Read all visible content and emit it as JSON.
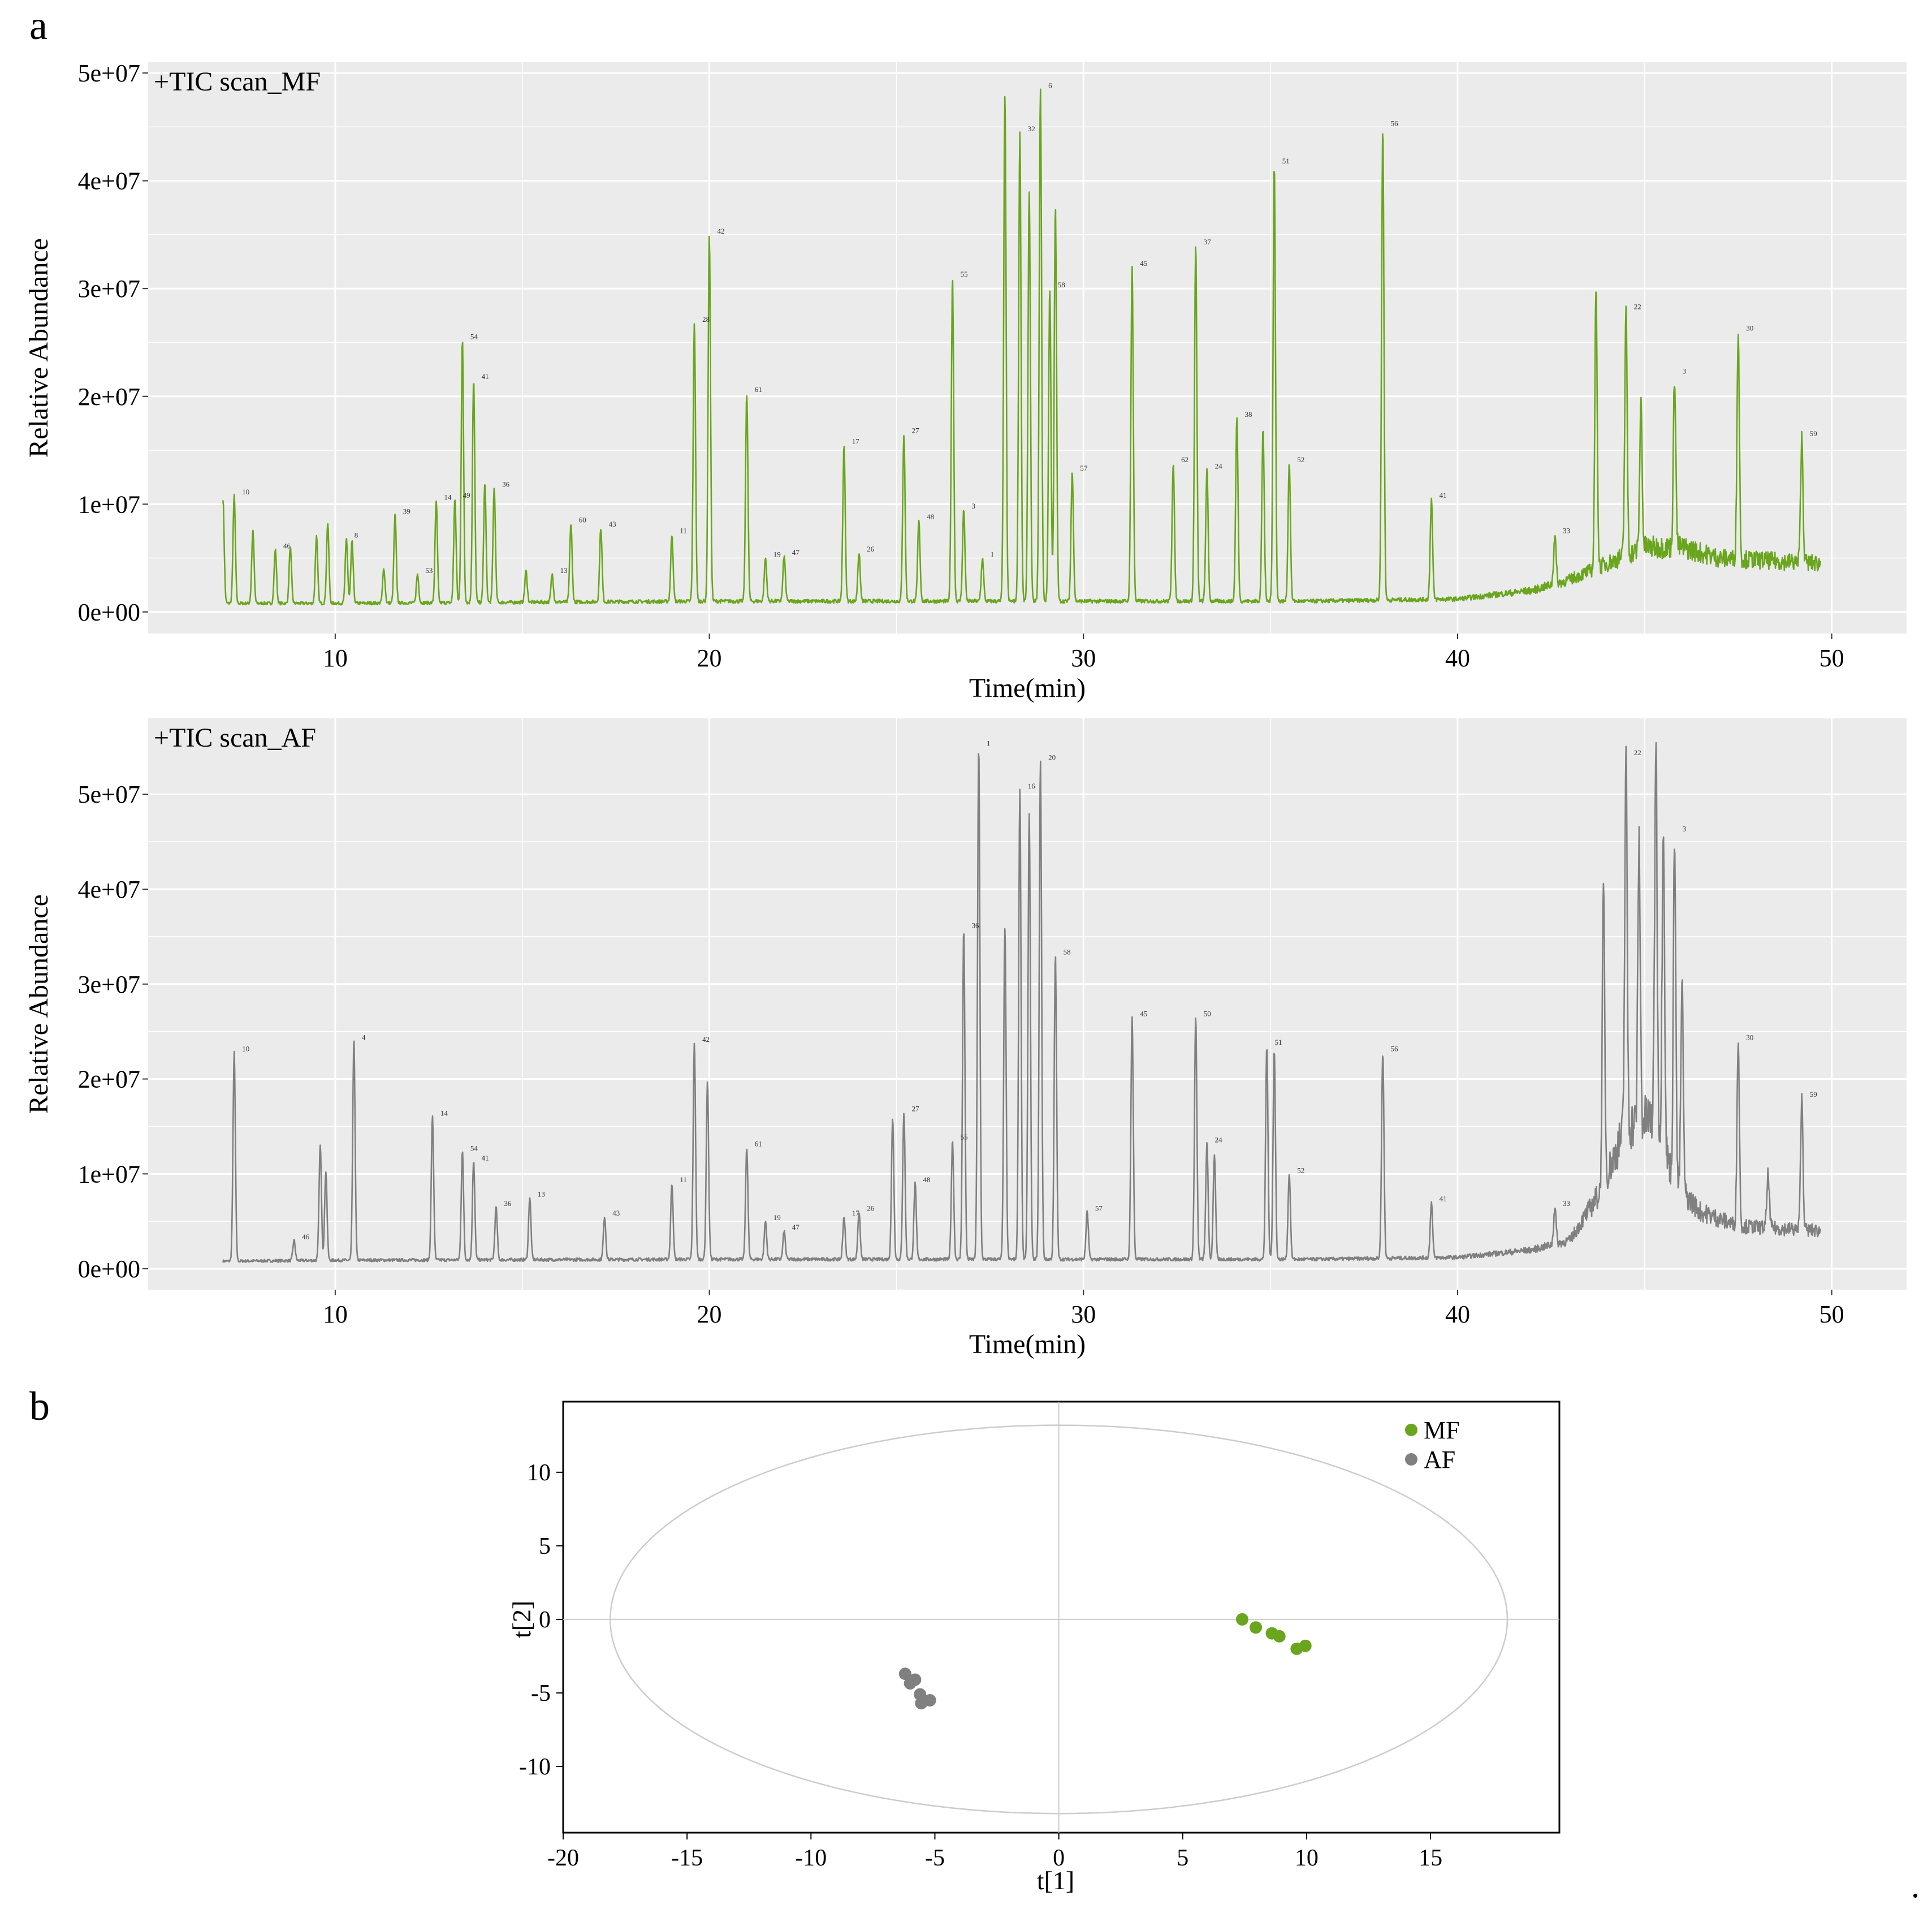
{
  "figure": {
    "panel_a_label": "a",
    "panel_b_label": "b",
    "trailing_mark": "."
  },
  "colors": {
    "mf": "#6aa51e",
    "af": "#808080",
    "panel_bg": "#ebebeb",
    "grid": "#ffffff",
    "ellipse": "#cccccc"
  },
  "chart_data": [
    {
      "type": "line",
      "panel": "a-top",
      "title": "+TIC scan_MF",
      "xlabel": "Time(min)",
      "ylabel": "Relative Abundance",
      "xlim": [
        5,
        52
      ],
      "ylim": [
        -2000000,
        51000000
      ],
      "xticks": [
        10,
        20,
        30,
        40,
        50
      ],
      "xtick_labels": [
        "10",
        "20",
        "30",
        "40",
        "50"
      ],
      "yticks": [
        0,
        10000000,
        20000000,
        30000000,
        40000000,
        50000000
      ],
      "ytick_labels": [
        "0e+00",
        "1e+07",
        "2e+07",
        "3e+07",
        "4e+07",
        "5e+07"
      ],
      "grid": true,
      "color": "#6aa51e",
      "x_range": [
        7.0,
        49.7
      ],
      "baseline": [
        [
          7.0,
          800000
        ],
        [
          10,
          800000
        ],
        [
          20,
          1000000
        ],
        [
          30,
          1000000
        ],
        [
          36,
          1000000
        ],
        [
          40,
          1200000
        ],
        [
          42,
          2000000
        ],
        [
          43,
          3000000
        ],
        [
          44,
          4500000
        ],
        [
          45,
          6000000
        ],
        [
          46,
          6000000
        ],
        [
          47,
          5000000
        ],
        [
          49.7,
          4500000
        ]
      ],
      "peaks": [
        {
          "x": 7.0,
          "y": 10500000,
          "label": ""
        },
        {
          "x": 7.3,
          "y": 10800000,
          "label": "10"
        },
        {
          "x": 7.8,
          "y": 7500000,
          "label": ""
        },
        {
          "x": 8.4,
          "y": 5800000,
          "label": "46"
        },
        {
          "x": 8.8,
          "y": 6000000,
          "label": ""
        },
        {
          "x": 9.5,
          "y": 7000000,
          "label": ""
        },
        {
          "x": 9.8,
          "y": 8200000,
          "label": ""
        },
        {
          "x": 10.3,
          "y": 6800000,
          "label": "8"
        },
        {
          "x": 10.45,
          "y": 6500000,
          "label": ""
        },
        {
          "x": 11.3,
          "y": 4000000,
          "label": ""
        },
        {
          "x": 11.6,
          "y": 9000000,
          "label": "39"
        },
        {
          "x": 12.2,
          "y": 3500000,
          "label": "53"
        },
        {
          "x": 12.7,
          "y": 10300000,
          "label": "14"
        },
        {
          "x": 13.2,
          "y": 10500000,
          "label": "49"
        },
        {
          "x": 13.4,
          "y": 25200000,
          "label": "54"
        },
        {
          "x": 13.7,
          "y": 21500000,
          "label": "41"
        },
        {
          "x": 14.0,
          "y": 12000000,
          "label": ""
        },
        {
          "x": 14.25,
          "y": 11500000,
          "label": "36"
        },
        {
          "x": 15.1,
          "y": 3800000,
          "label": ""
        },
        {
          "x": 15.8,
          "y": 3500000,
          "label": "13"
        },
        {
          "x": 16.3,
          "y": 8200000,
          "label": "60"
        },
        {
          "x": 17.1,
          "y": 7800000,
          "label": "43"
        },
        {
          "x": 19.0,
          "y": 7200000,
          "label": "11"
        },
        {
          "x": 19.6,
          "y": 26800000,
          "label": "28"
        },
        {
          "x": 20.0,
          "y": 35000000,
          "label": "42"
        },
        {
          "x": 21.0,
          "y": 20300000,
          "label": "61"
        },
        {
          "x": 21.5,
          "y": 5000000,
          "label": "19"
        },
        {
          "x": 22.0,
          "y": 5200000,
          "label": "47"
        },
        {
          "x": 23.6,
          "y": 15500000,
          "label": "17"
        },
        {
          "x": 24.0,
          "y": 5500000,
          "label": "26"
        },
        {
          "x": 25.2,
          "y": 16500000,
          "label": "27"
        },
        {
          "x": 25.6,
          "y": 8500000,
          "label": "48"
        },
        {
          "x": 26.5,
          "y": 31000000,
          "label": "55"
        },
        {
          "x": 26.8,
          "y": 9500000,
          "label": "3"
        },
        {
          "x": 27.3,
          "y": 5000000,
          "label": "1"
        },
        {
          "x": 27.9,
          "y": 48000000,
          "label": ""
        },
        {
          "x": 28.3,
          "y": 44500000,
          "label": "32"
        },
        {
          "x": 28.55,
          "y": 39000000,
          "label": ""
        },
        {
          "x": 28.85,
          "y": 48500000,
          "label": "6"
        },
        {
          "x": 29.1,
          "y": 30000000,
          "label": "58"
        },
        {
          "x": 29.25,
          "y": 37500000,
          "label": ""
        },
        {
          "x": 29.7,
          "y": 13000000,
          "label": "57"
        },
        {
          "x": 31.3,
          "y": 32000000,
          "label": "45"
        },
        {
          "x": 32.4,
          "y": 13800000,
          "label": "62"
        },
        {
          "x": 33.0,
          "y": 34000000,
          "label": "37"
        },
        {
          "x": 33.3,
          "y": 13200000,
          "label": "24"
        },
        {
          "x": 34.1,
          "y": 18000000,
          "label": "38"
        },
        {
          "x": 34.8,
          "y": 17000000,
          "label": ""
        },
        {
          "x": 35.1,
          "y": 41500000,
          "label": "51"
        },
        {
          "x": 35.5,
          "y": 13800000,
          "label": "52"
        },
        {
          "x": 38.0,
          "y": 45000000,
          "label": "56"
        },
        {
          "x": 39.3,
          "y": 10500000,
          "label": "41"
        },
        {
          "x": 42.6,
          "y": 7200000,
          "label": "33"
        },
        {
          "x": 43.7,
          "y": 29800000,
          "label": ""
        },
        {
          "x": 44.5,
          "y": 28000000,
          "label": "22"
        },
        {
          "x": 44.9,
          "y": 19500000,
          "label": ""
        },
        {
          "x": 45.8,
          "y": 22000000,
          "label": "3"
        },
        {
          "x": 47.5,
          "y": 26000000,
          "label": "30"
        },
        {
          "x": 49.2,
          "y": 16200000,
          "label": "59"
        }
      ]
    },
    {
      "type": "line",
      "panel": "a-bottom",
      "title": "+TIC scan_AF",
      "xlabel": "Time(min)",
      "ylabel": "Relative Abundance",
      "xlim": [
        5,
        52
      ],
      "ylim": [
        -2200000,
        58000000
      ],
      "xticks": [
        10,
        20,
        30,
        40,
        50
      ],
      "xtick_labels": [
        "10",
        "20",
        "30",
        "40",
        "50"
      ],
      "yticks": [
        0,
        10000000,
        20000000,
        30000000,
        40000000,
        50000000
      ],
      "ytick_labels": [
        "0e+00",
        "1e+07",
        "2e+07",
        "3e+07",
        "4e+07",
        "5e+07"
      ],
      "grid": true,
      "color": "#808080",
      "x_range": [
        7.0,
        49.7
      ],
      "baseline": [
        [
          7.0,
          800000
        ],
        [
          10,
          900000
        ],
        [
          20,
          1000000
        ],
        [
          30,
          1000000
        ],
        [
          36,
          1000000
        ],
        [
          40,
          1200000
        ],
        [
          42,
          2000000
        ],
        [
          43,
          3000000
        ],
        [
          43.8,
          8000000
        ],
        [
          44.5,
          15000000
        ],
        [
          45.3,
          16000000
        ],
        [
          45.8,
          9000000
        ],
        [
          46.5,
          6000000
        ],
        [
          47.5,
          4500000
        ],
        [
          49.7,
          4000000
        ]
      ],
      "peaks": [
        {
          "x": 7.3,
          "y": 22800000,
          "label": "10"
        },
        {
          "x": 8.9,
          "y": 3000000,
          "label": "46"
        },
        {
          "x": 9.6,
          "y": 13000000,
          "label": ""
        },
        {
          "x": 9.75,
          "y": 10300000,
          "label": ""
        },
        {
          "x": 10.5,
          "y": 24000000,
          "label": "4"
        },
        {
          "x": 12.6,
          "y": 16000000,
          "label": "14"
        },
        {
          "x": 13.4,
          "y": 12300000,
          "label": "54"
        },
        {
          "x": 13.7,
          "y": 11300000,
          "label": "41"
        },
        {
          "x": 14.3,
          "y": 6500000,
          "label": "36"
        },
        {
          "x": 15.2,
          "y": 7500000,
          "label": "13"
        },
        {
          "x": 17.2,
          "y": 5500000,
          "label": "43"
        },
        {
          "x": 19.0,
          "y": 9000000,
          "label": "11"
        },
        {
          "x": 19.6,
          "y": 23800000,
          "label": "42"
        },
        {
          "x": 19.95,
          "y": 19800000,
          "label": ""
        },
        {
          "x": 21.0,
          "y": 12800000,
          "label": "61"
        },
        {
          "x": 21.5,
          "y": 5000000,
          "label": "19"
        },
        {
          "x": 22.0,
          "y": 4000000,
          "label": "47"
        },
        {
          "x": 23.6,
          "y": 5500000,
          "label": "17"
        },
        {
          "x": 24.0,
          "y": 6000000,
          "label": "26"
        },
        {
          "x": 24.9,
          "y": 15800000,
          "label": ""
        },
        {
          "x": 25.2,
          "y": 16500000,
          "label": "27"
        },
        {
          "x": 25.5,
          "y": 9000000,
          "label": "48"
        },
        {
          "x": 26.5,
          "y": 13500000,
          "label": "55"
        },
        {
          "x": 26.8,
          "y": 35800000,
          "label": "36"
        },
        {
          "x": 27.2,
          "y": 55000000,
          "label": "1"
        },
        {
          "x": 27.9,
          "y": 36000000,
          "label": ""
        },
        {
          "x": 28.3,
          "y": 50500000,
          "label": "16"
        },
        {
          "x": 28.55,
          "y": 48000000,
          "label": ""
        },
        {
          "x": 28.85,
          "y": 53500000,
          "label": "20"
        },
        {
          "x": 29.25,
          "y": 33000000,
          "label": "58"
        },
        {
          "x": 30.1,
          "y": 6000000,
          "label": "57"
        },
        {
          "x": 31.3,
          "y": 26500000,
          "label": "45"
        },
        {
          "x": 33.0,
          "y": 26500000,
          "label": "50"
        },
        {
          "x": 33.3,
          "y": 13200000,
          "label": "24"
        },
        {
          "x": 33.5,
          "y": 12000000,
          "label": ""
        },
        {
          "x": 34.9,
          "y": 23500000,
          "label": "51"
        },
        {
          "x": 35.1,
          "y": 23000000,
          "label": ""
        },
        {
          "x": 35.5,
          "y": 10000000,
          "label": "52"
        },
        {
          "x": 38.0,
          "y": 22800000,
          "label": "56"
        },
        {
          "x": 39.3,
          "y": 7000000,
          "label": "41"
        },
        {
          "x": 42.6,
          "y": 6500000,
          "label": "33"
        },
        {
          "x": 43.9,
          "y": 40000000,
          "label": ""
        },
        {
          "x": 44.5,
          "y": 54000000,
          "label": "22"
        },
        {
          "x": 44.85,
          "y": 45000000,
          "label": ""
        },
        {
          "x": 45.3,
          "y": 56000000,
          "label": ""
        },
        {
          "x": 45.5,
          "y": 48000000,
          "label": ""
        },
        {
          "x": 45.8,
          "y": 46000000,
          "label": "3"
        },
        {
          "x": 46.0,
          "y": 30000000,
          "label": ""
        },
        {
          "x": 47.5,
          "y": 24000000,
          "label": "30"
        },
        {
          "x": 48.3,
          "y": 10000000,
          "label": ""
        },
        {
          "x": 49.2,
          "y": 18000000,
          "label": "59"
        }
      ]
    },
    {
      "type": "scatter",
      "panel": "b",
      "xlabel": "t[1]",
      "ylabel": "t[2]",
      "xlim": [
        -20,
        20.2
      ],
      "ylim": [
        -14.5,
        14.8
      ],
      "xticks": [
        -20,
        -15,
        -10,
        -5,
        0,
        5,
        10,
        15
      ],
      "xtick_labels": [
        "-20",
        "-15",
        "-10",
        "-5",
        "0",
        "5",
        "10",
        "15"
      ],
      "yticks": [
        10,
        5,
        0,
        -5,
        -10
      ],
      "ytick_labels": [
        "10",
        "5",
        "0",
        "-5",
        "-10"
      ],
      "ellipse": {
        "cx": 0,
        "cy": 0,
        "rx": 18.1,
        "ry": 13.2
      },
      "legend_position": "top-right",
      "series": [
        {
          "name": "MF",
          "color": "#6aa51e",
          "points": [
            [
              7.4,
              0.0
            ],
            [
              7.95,
              -0.55
            ],
            [
              8.6,
              -0.95
            ],
            [
              8.9,
              -1.15
            ],
            [
              9.6,
              -2.0
            ],
            [
              9.95,
              -1.8
            ]
          ]
        },
        {
          "name": "AF",
          "color": "#808080",
          "points": [
            [
              -6.2,
              -3.7
            ],
            [
              -6.0,
              -4.35
            ],
            [
              -5.8,
              -4.1
            ],
            [
              -5.6,
              -5.1
            ],
            [
              -5.55,
              -5.7
            ],
            [
              -5.2,
              -5.5
            ]
          ]
        }
      ]
    }
  ]
}
